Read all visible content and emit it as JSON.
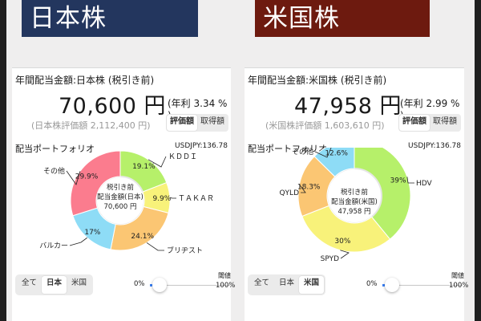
{
  "left": {
    "banner_title": "日本株",
    "banner_color": "#23365e",
    "annual_label": "年間配当金額:日本株 (税引き前)",
    "amount": "70,600 円",
    "rate": "(年利 3.34 % )",
    "valuation": "(日本株評価額 2,112,400 円)",
    "toggle": [
      "評価額",
      "取得額"
    ],
    "portfolio_title": "配当ポートフォリオ",
    "usdjpy": "USDJPY:136.78",
    "center": [
      "税引き前",
      "配当金額(日本)",
      "70,600 円"
    ],
    "slices": [
      {
        "name": "KDDI",
        "label": "ＫＤＤＩ",
        "pct": 19.1,
        "pct_label": "19.1%",
        "color": "#b6f06a"
      },
      {
        "name": "TAKAR",
        "label": "ＴＡＫＡＲ",
        "pct": 9.9,
        "pct_label": "9.9%",
        "color": "#f8f27a"
      },
      {
        "name": "ブリヂスト",
        "label": "ブリヂスト",
        "pct": 24.1,
        "pct_label": "24.1%",
        "color": "#fbc673"
      },
      {
        "name": "バルカー",
        "label": "バルカー",
        "pct": 17,
        "pct_label": "17%",
        "color": "#8edcf6"
      },
      {
        "name": "その他",
        "label": "その他",
        "pct": 29.9,
        "pct_label": "29.9%",
        "color": "#fb7c8e"
      }
    ],
    "filter": [
      "全て",
      "日本",
      "米国"
    ],
    "filter_selected": 1,
    "slider_min": "0%",
    "slider_max": "100%",
    "threshold_label": "閾値",
    "threshold_value": 0
  },
  "right": {
    "banner_title": "米国株",
    "banner_color": "#6d1a0f",
    "annual_label": "年間配当金額:米国株 (税引き前)",
    "amount": "47,958 円",
    "rate": "(年利 2.99 % )",
    "valuation": "(米国株評価額 1,603,610 円)",
    "toggle": [
      "評価額",
      "取得額"
    ],
    "portfolio_title": "配当ポートフォリオ",
    "usdjpy": "USDJPY:136.78",
    "center": [
      "税引き前",
      "配当金額(米国)",
      "47,958 円"
    ],
    "slices": [
      {
        "name": "HDV",
        "label": "HDV",
        "pct": 39,
        "pct_label": "39%",
        "color": "#b6f06a"
      },
      {
        "name": "SPYD",
        "label": "SPYD",
        "pct": 30,
        "pct_label": "30%",
        "color": "#f8f27a"
      },
      {
        "name": "QYLD",
        "label": "QYLD",
        "pct": 18.3,
        "pct_label": "18.3%",
        "color": "#fbc673"
      },
      {
        "name": "その他",
        "label": "その他",
        "pct": 12.6,
        "pct_label": "12.6%",
        "color": "#8edcf6"
      }
    ],
    "filter": [
      "全て",
      "日本",
      "米国"
    ],
    "filter_selected": 2,
    "slider_min": "0%",
    "slider_max": "100%",
    "threshold_label": "閾値",
    "threshold_value": 0
  },
  "chart_data": [
    {
      "type": "pie",
      "title": "配当ポートフォリオ",
      "categories": [
        "ＫＤＤＩ",
        "ＴＡＫＡＲ",
        "ブリヂスト",
        "バルカー",
        "その他"
      ],
      "values": [
        19.1,
        9.9,
        24.1,
        17,
        29.9
      ]
    },
    {
      "type": "pie",
      "title": "配当ポートフォリオ",
      "categories": [
        "HDV",
        "SPYD",
        "QYLD",
        "その他"
      ],
      "values": [
        39,
        30,
        18.3,
        12.6
      ]
    }
  ]
}
